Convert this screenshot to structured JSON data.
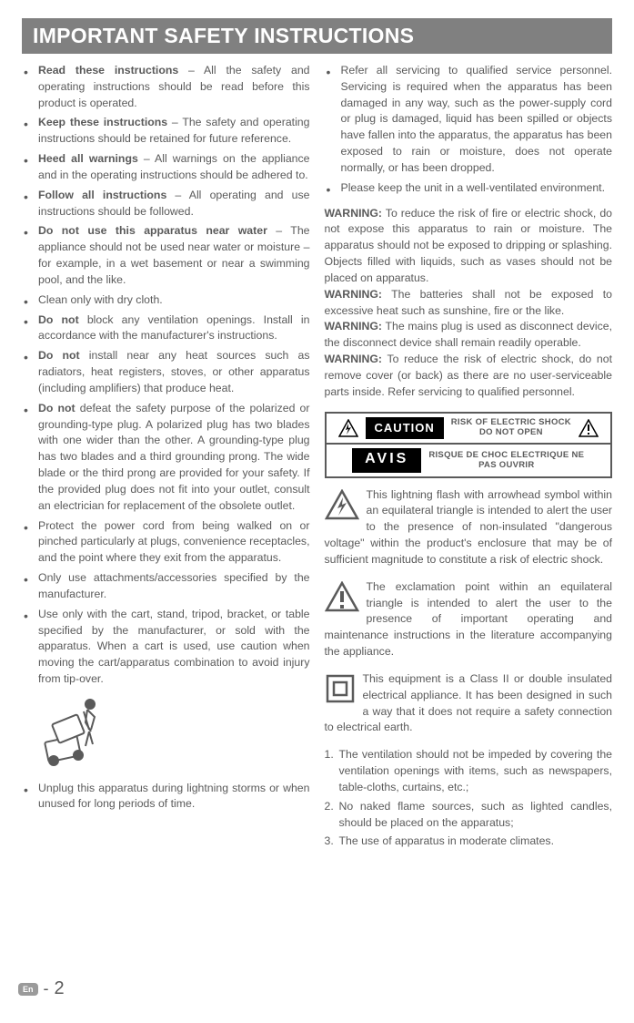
{
  "title": "IMPORTANT SAFETY INSTRUCTIONS",
  "left": {
    "items": [
      {
        "bold": "Read these instructions",
        "text": " – All the safety and operating instructions should be read before this product is operated.",
        "strong": true
      },
      {
        "bold": "Keep these instructions",
        "text": " – The safety and operating instructions should be retained for future reference.",
        "strong": true
      },
      {
        "bold": "Heed all warnings",
        "text": " – All warnings on the appliance and in the operating instructions should be adhered to.",
        "strong": true
      },
      {
        "bold": "Follow all instructions",
        "text": " – All operating and use instructions should be followed.",
        "strong": true
      },
      {
        "bold": "Do not use this apparatus near water",
        "text": " – The appliance should not be used near water or moisture – for example, in a wet basement or near a swimming pool, and the like.",
        "strong": true
      },
      {
        "bold": "",
        "text": "Clean only with dry cloth.",
        "strong": false
      },
      {
        "bold": "Do not",
        "text": " block any ventilation openings. Install in accordance with the manufacturer's instructions.",
        "strong": true
      },
      {
        "bold": "Do not",
        "text": " install near any heat sources such as radiators, heat registers, stoves, or other apparatus (including amplifiers) that produce heat.",
        "strong": true
      },
      {
        "bold": "Do not",
        "text": " defeat the safety purpose of the polarized or grounding-type plug. A polarized plug has two blades with one wider than the other. A grounding-type plug has two blades and a third grounding prong. The wide blade or the third prong are provided for your safety. If the provided plug does not fit into your outlet, consult an electrician for replacement of the obsolete outlet.",
        "strong": true
      },
      {
        "bold": "",
        "text": "Protect the power cord from being walked on or pinched particularly at plugs, convenience receptacles, and the point where they exit from the apparatus.",
        "strong": false
      },
      {
        "bold": "",
        "text": "Only use attachments/accessories specified by the manufacturer.",
        "strong": false
      },
      {
        "bold": "",
        "text": "Use only with the cart, stand, tripod, bracket, or table specified by the manufacturer, or sold with the apparatus. When a cart is used, use caution when moving the cart/apparatus combination to avoid injury from tip-over.",
        "strong": false
      }
    ],
    "last": {
      "bold": "",
      "text": "Unplug this apparatus during lightning storms or when unused for long periods of time.",
      "strong": false
    }
  },
  "right": {
    "top": [
      {
        "text": "Refer all servicing to qualified service personnel. Servicing is required when the apparatus has been damaged in any way, such as the power-supply cord or plug is damaged, liquid has been spilled or objects have fallen into the apparatus, the apparatus has been exposed to rain or moisture, does not operate normally, or has been dropped."
      },
      {
        "text": "Please keep the unit in a well-ventilated environment."
      }
    ],
    "warnings": [
      {
        "label": "WARNING:",
        "text": " To reduce the risk of fire or electric shock, do not expose this apparatus to rain or moisture. The apparatus should not be exposed to dripping or splashing. Objects filled with liquids, such as vases should not be placed on apparatus."
      },
      {
        "label": "WARNING:",
        "text": " The batteries shall not be exposed to excessive heat such as sunshine, fire or the like."
      },
      {
        "label": "WARNING:",
        "text": " The mains plug is used as disconnect device, the disconnect device shall remain readily operable."
      },
      {
        "label": "WARNING:",
        "text": " To reduce the risk of electric shock, do not remove cover (or back) as there are no user-serviceable parts inside. Refer servicing to qualified personnel."
      }
    ],
    "caution": {
      "label1": "CAUTION",
      "text1a": "RISK OF ELECTRIC SHOCK",
      "text1b": "DO NOT OPEN",
      "label2": "AVIS",
      "text2a": "RISQUE DE CHOC ELECTRIQUE NE",
      "text2b": "PAS OUVRIR"
    },
    "bolt_para": "This lightning flash with arrowhead symbol within an equilateral triangle is intended to alert the user to the presence of non-insulated \"dangerous voltage\" within the product's enclosure that may be of sufficient magnitude to constitute a risk of electric shock.",
    "excl_para": "The exclamation point within an equilateral triangle is intended to alert the user to the presence of important operating and maintenance instructions in the literature accompanying the appliance.",
    "class2_para": "This equipment is a Class II or double insulated electrical appliance. It has been designed in such a way that it does not require a safety connection to electrical earth.",
    "numbered": [
      {
        "n": "1.",
        "t": "The ventilation should not be impeded by covering the ventilation openings with items, such as newspapers, table-cloths,  curtains, etc.;"
      },
      {
        "n": "2.",
        "t": "No naked flame sources, such as lighted candles, should  be placed on the apparatus;"
      },
      {
        "n": "3.",
        "t": "The use of  apparatus  in   moderate climates."
      }
    ]
  },
  "footer": {
    "lang": "En",
    "pg": "2"
  },
  "colors": {
    "titlebg": "#808080",
    "titlefg": "#ffffff",
    "text": "#5a5a5a"
  }
}
